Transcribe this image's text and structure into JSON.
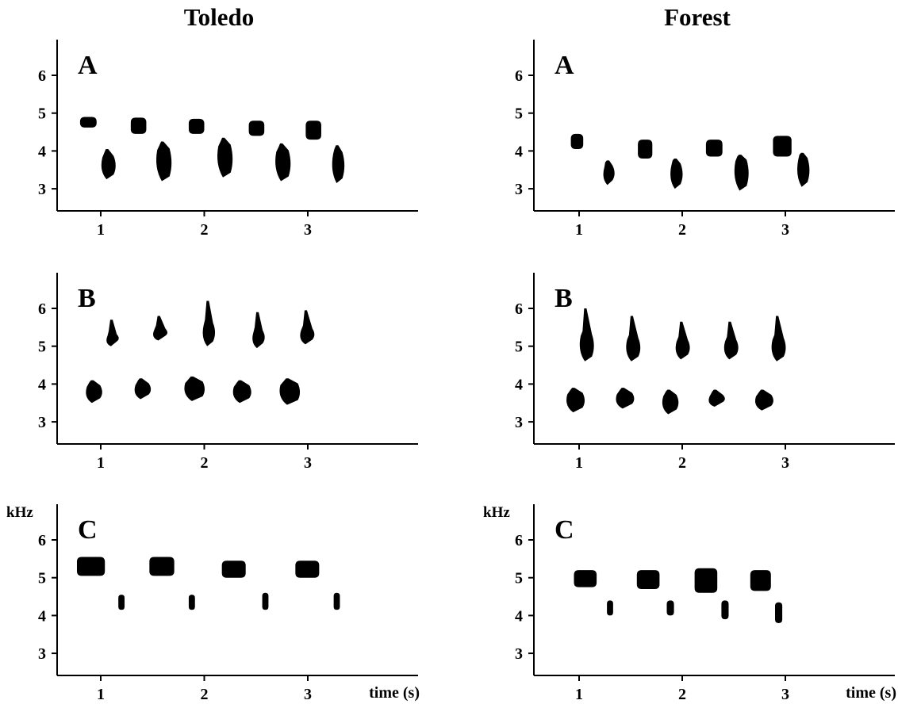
{
  "columns": [
    {
      "title": "Toledo"
    },
    {
      "title": "Forest"
    }
  ],
  "chart_data": [
    {
      "type": "spectrogram",
      "column": "Toledo",
      "panel_label": "A",
      "xlabel": "",
      "ylabel": "",
      "x_ticks": [
        1,
        2,
        3
      ],
      "y_ticks": [
        3,
        4,
        5,
        6
      ],
      "xlim": [
        0.5,
        4.0
      ],
      "ylim": [
        2.5,
        6.8
      ],
      "notes": [
        {
          "t": 0.8,
          "dur": 0.16,
          "fmin": 4.62,
          "fmax": 4.9,
          "sweep": 0.0
        },
        {
          "t": 1.0,
          "dur": 0.14,
          "fmin": 3.25,
          "fmax": 4.05,
          "sweep": 0.1
        },
        {
          "t": 1.29,
          "dur": 0.15,
          "fmin": 4.45,
          "fmax": 4.88,
          "sweep": 0.0
        },
        {
          "t": 1.53,
          "dur": 0.15,
          "fmin": 3.2,
          "fmax": 4.25,
          "sweep": 0.1
        },
        {
          "t": 1.85,
          "dur": 0.15,
          "fmin": 4.45,
          "fmax": 4.85,
          "sweep": 0.0
        },
        {
          "t": 2.12,
          "dur": 0.15,
          "fmin": 3.3,
          "fmax": 4.35,
          "sweep": 0.1
        },
        {
          "t": 2.43,
          "dur": 0.15,
          "fmin": 4.4,
          "fmax": 4.8,
          "sweep": 0.0
        },
        {
          "t": 2.68,
          "dur": 0.15,
          "fmin": 3.2,
          "fmax": 4.2,
          "sweep": 0.1
        },
        {
          "t": 2.98,
          "dur": 0.15,
          "fmin": 4.3,
          "fmax": 4.8,
          "sweep": 0.0
        },
        {
          "t": 3.23,
          "dur": 0.12,
          "fmin": 3.15,
          "fmax": 4.15,
          "sweep": 0.1
        }
      ]
    },
    {
      "type": "spectrogram",
      "column": "Toledo",
      "panel_label": "B",
      "xlabel": "",
      "ylabel": "",
      "x_ticks": [
        1,
        2,
        3
      ],
      "y_ticks": [
        3,
        4,
        5,
        6
      ],
      "xlim": [
        0.5,
        4.0
      ],
      "ylim": [
        2.5,
        6.8
      ],
      "notes": [
        {
          "t": 1.05,
          "dur": 0.12,
          "fmin": 5.0,
          "fmax": 5.7,
          "sweep": 0.3
        },
        {
          "t": 1.5,
          "dur": 0.14,
          "fmin": 5.15,
          "fmax": 5.8,
          "sweep": 0.25
        },
        {
          "t": 1.98,
          "dur": 0.12,
          "fmin": 5.0,
          "fmax": 6.2,
          "sweep": 0.5
        },
        {
          "t": 2.46,
          "dur": 0.12,
          "fmin": 4.95,
          "fmax": 5.9,
          "sweep": 0.4
        },
        {
          "t": 2.92,
          "dur": 0.14,
          "fmin": 5.05,
          "fmax": 5.95,
          "sweep": 0.4
        },
        {
          "t": 0.85,
          "dur": 0.16,
          "fmin": 3.5,
          "fmax": 4.1,
          "sweep": 0.05
        },
        {
          "t": 1.32,
          "dur": 0.16,
          "fmin": 3.6,
          "fmax": 4.15,
          "sweep": 0.05
        },
        {
          "t": 1.8,
          "dur": 0.2,
          "fmin": 3.55,
          "fmax": 4.2,
          "sweep": 0.05
        },
        {
          "t": 2.27,
          "dur": 0.18,
          "fmin": 3.5,
          "fmax": 4.1,
          "sweep": 0.05
        },
        {
          "t": 2.72,
          "dur": 0.2,
          "fmin": 3.45,
          "fmax": 4.15,
          "sweep": 0.05
        }
      ]
    },
    {
      "type": "spectrogram",
      "column": "Toledo",
      "panel_label": "C",
      "xlabel": "time (s)",
      "ylabel": "kHz",
      "x_ticks": [
        1,
        2,
        3
      ],
      "y_ticks": [
        3,
        4,
        5,
        6
      ],
      "xlim": [
        0.5,
        4.0
      ],
      "ylim": [
        2.5,
        6.8
      ],
      "notes": [
        {
          "t": 0.77,
          "dur": 0.27,
          "fmin": 5.05,
          "fmax": 5.55,
          "sweep": 0.0
        },
        {
          "t": 1.17,
          "dur": 0.06,
          "fmin": 4.15,
          "fmax": 4.55,
          "sweep": 0.0
        },
        {
          "t": 1.47,
          "dur": 0.24,
          "fmin": 5.05,
          "fmax": 5.55,
          "sweep": 0.0
        },
        {
          "t": 1.85,
          "dur": 0.06,
          "fmin": 4.15,
          "fmax": 4.55,
          "sweep": 0.0
        },
        {
          "t": 2.17,
          "dur": 0.23,
          "fmin": 5.0,
          "fmax": 5.45,
          "sweep": 0.0
        },
        {
          "t": 2.56,
          "dur": 0.06,
          "fmin": 4.15,
          "fmax": 4.6,
          "sweep": 0.0
        },
        {
          "t": 2.88,
          "dur": 0.23,
          "fmin": 5.0,
          "fmax": 5.45,
          "sweep": 0.0
        },
        {
          "t": 3.25,
          "dur": 0.06,
          "fmin": 4.15,
          "fmax": 4.6,
          "sweep": 0.0
        }
      ]
    },
    {
      "type": "spectrogram",
      "column": "Forest",
      "panel_label": "A",
      "xlabel": "",
      "ylabel": "",
      "x_ticks": [
        1,
        2,
        3
      ],
      "y_ticks": [
        3,
        4,
        5,
        6
      ],
      "xlim": [
        0.5,
        4.0
      ],
      "ylim": [
        2.5,
        6.8
      ],
      "notes": [
        {
          "t": 0.92,
          "dur": 0.12,
          "fmin": 4.05,
          "fmax": 4.45,
          "sweep": 0.0
        },
        {
          "t": 1.23,
          "dur": 0.11,
          "fmin": 3.1,
          "fmax": 3.75,
          "sweep": 0.05
        },
        {
          "t": 1.57,
          "dur": 0.14,
          "fmin": 3.8,
          "fmax": 4.3,
          "sweep": 0.0
        },
        {
          "t": 1.88,
          "dur": 0.12,
          "fmin": 3.0,
          "fmax": 3.8,
          "sweep": 0.05
        },
        {
          "t": 2.23,
          "dur": 0.16,
          "fmin": 3.85,
          "fmax": 4.3,
          "sweep": 0.0
        },
        {
          "t": 2.5,
          "dur": 0.14,
          "fmin": 2.95,
          "fmax": 3.9,
          "sweep": 0.05
        },
        {
          "t": 2.88,
          "dur": 0.18,
          "fmin": 3.85,
          "fmax": 4.4,
          "sweep": 0.0
        },
        {
          "t": 3.11,
          "dur": 0.12,
          "fmin": 3.05,
          "fmax": 3.95,
          "sweep": 0.05
        }
      ]
    },
    {
      "type": "spectrogram",
      "column": "Forest",
      "panel_label": "B",
      "xlabel": "",
      "ylabel": "",
      "x_ticks": [
        1,
        2,
        3
      ],
      "y_ticks": [
        3,
        4,
        5,
        6
      ],
      "xlim": [
        0.5,
        4.0
      ],
      "ylim": [
        2.5,
        6.8
      ],
      "notes": [
        {
          "t": 1.0,
          "dur": 0.14,
          "fmin": 4.6,
          "fmax": 6.0,
          "sweep": 0.6
        },
        {
          "t": 1.45,
          "dur": 0.14,
          "fmin": 4.6,
          "fmax": 5.8,
          "sweep": 0.5
        },
        {
          "t": 1.93,
          "dur": 0.14,
          "fmin": 4.65,
          "fmax": 5.65,
          "sweep": 0.4
        },
        {
          "t": 2.4,
          "dur": 0.14,
          "fmin": 4.65,
          "fmax": 5.65,
          "sweep": 0.4
        },
        {
          "t": 2.86,
          "dur": 0.14,
          "fmin": 4.6,
          "fmax": 5.8,
          "sweep": 0.5
        },
        {
          "t": 0.87,
          "dur": 0.18,
          "fmin": 3.25,
          "fmax": 3.9,
          "sweep": 0.05
        },
        {
          "t": 1.35,
          "dur": 0.18,
          "fmin": 3.35,
          "fmax": 3.9,
          "sweep": 0.05
        },
        {
          "t": 1.8,
          "dur": 0.16,
          "fmin": 3.2,
          "fmax": 3.85,
          "sweep": 0.05
        },
        {
          "t": 2.25,
          "dur": 0.16,
          "fmin": 3.4,
          "fmax": 3.85,
          "sweep": 0.05
        },
        {
          "t": 2.7,
          "dur": 0.18,
          "fmin": 3.3,
          "fmax": 3.85,
          "sweep": 0.05
        }
      ]
    },
    {
      "type": "spectrogram",
      "column": "Forest",
      "panel_label": "C",
      "xlabel": "time (s)",
      "ylabel": "kHz",
      "x_ticks": [
        1,
        2,
        3
      ],
      "y_ticks": [
        3,
        4,
        5,
        6
      ],
      "xlim": [
        0.5,
        4.0
      ],
      "ylim": [
        2.5,
        6.8
      ],
      "notes": [
        {
          "t": 0.95,
          "dur": 0.22,
          "fmin": 4.75,
          "fmax": 5.2,
          "sweep": 0.0
        },
        {
          "t": 1.27,
          "dur": 0.06,
          "fmin": 4.0,
          "fmax": 4.4,
          "sweep": 0.0
        },
        {
          "t": 1.56,
          "dur": 0.22,
          "fmin": 4.7,
          "fmax": 5.2,
          "sweep": 0.0
        },
        {
          "t": 1.85,
          "dur": 0.07,
          "fmin": 4.0,
          "fmax": 4.4,
          "sweep": 0.0
        },
        {
          "t": 2.12,
          "dur": 0.22,
          "fmin": 4.6,
          "fmax": 5.25,
          "sweep": 0.0
        },
        {
          "t": 2.38,
          "dur": 0.07,
          "fmin": 3.9,
          "fmax": 4.4,
          "sweep": 0.0
        },
        {
          "t": 2.66,
          "dur": 0.2,
          "fmin": 4.65,
          "fmax": 5.2,
          "sweep": 0.0
        },
        {
          "t": 2.9,
          "dur": 0.07,
          "fmin": 3.8,
          "fmax": 4.35,
          "sweep": 0.0
        }
      ]
    }
  ]
}
